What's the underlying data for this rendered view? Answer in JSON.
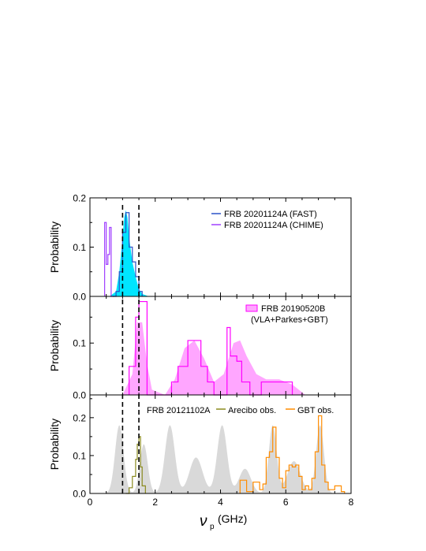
{
  "figure": {
    "xlabel_sym": "ν",
    "xlabel_sub": "p",
    "xlabel_unit": "(GHz)",
    "x_range": [
      0,
      8
    ],
    "x_ticks": [
      0,
      2,
      4,
      6,
      8
    ],
    "dashed_lines_x": [
      1.0,
      1.5
    ]
  },
  "chart_data": [
    {
      "type": "area",
      "ylabel": "Probability",
      "ylim": [
        0,
        0.2
      ],
      "y_ticks": [
        0,
        0.1,
        0.2
      ],
      "y_tick_labels": [
        "0.0",
        "0.1",
        "0.2"
      ],
      "legend_position": "top-right",
      "series": [
        {
          "name": "FRB 20201124A (FAST)",
          "color": "#2b53c8",
          "fill": "#00e5ff",
          "step_edges": [
            0.7,
            0.8,
            0.9,
            1.0,
            1.1,
            1.2,
            1.3,
            1.4,
            1.5,
            1.6
          ],
          "step_values": [
            0.0,
            0.01,
            0.05,
            0.13,
            0.17,
            0.1,
            0.07,
            0.04,
            0.01
          ],
          "density_x": [
            0.6,
            0.8,
            0.9,
            1.0,
            1.05,
            1.1,
            1.15,
            1.2,
            1.3,
            1.4,
            1.5,
            1.6,
            1.8
          ],
          "density_y": [
            0.0,
            0.01,
            0.05,
            0.12,
            0.16,
            0.175,
            0.16,
            0.12,
            0.07,
            0.04,
            0.015,
            0.005,
            0.0
          ]
        },
        {
          "name": "FRB 20201124A (CHIME)",
          "color": "#a040ff",
          "step_edges": [
            0.45,
            0.5,
            0.55,
            0.6,
            0.65,
            0.7,
            0.75
          ],
          "step_values": [
            0.15,
            0.065,
            0.085,
            0.14,
            0.0,
            0.0
          ]
        }
      ]
    },
    {
      "type": "area",
      "ylabel": "Probability",
      "ylim": [
        0,
        0.19
      ],
      "y_ticks": [
        0,
        0.1
      ],
      "y_tick_labels": [
        "0.0",
        "0.1"
      ],
      "legend_position": "top-right",
      "series": [
        {
          "name": "FRB 20190520B",
          "label_extra": "(VLA+Parkes+GBT)",
          "color": "#ff00ff",
          "fill": "#ffa6ff",
          "step_edges": [
            1.2,
            1.4,
            1.5,
            1.75,
            2.0,
            2.5,
            2.7,
            3.0,
            3.4,
            3.6,
            3.8,
            4.2,
            4.3,
            4.5,
            4.65,
            4.9,
            5.25,
            6.2
          ],
          "step_values": [
            0.055,
            0.15,
            0.18,
            0.0,
            0.0,
            0.025,
            0.055,
            0.105,
            0.055,
            0.025,
            0.0,
            0.13,
            0.075,
            0.065,
            0.025,
            0.0,
            0.025
          ],
          "density_x": [
            1.0,
            1.3,
            1.45,
            1.6,
            1.75,
            1.9,
            2.3,
            2.6,
            2.9,
            3.2,
            3.5,
            3.8,
            4.1,
            4.4,
            4.6,
            4.8,
            5.1,
            5.4,
            5.8,
            6.2,
            6.6
          ],
          "density_y": [
            0.0,
            0.04,
            0.14,
            0.14,
            0.06,
            0.01,
            0.0,
            0.03,
            0.09,
            0.105,
            0.07,
            0.025,
            0.04,
            0.1,
            0.105,
            0.075,
            0.04,
            0.03,
            0.03,
            0.02,
            0.0
          ]
        }
      ]
    },
    {
      "type": "area",
      "ylabel": "Probability",
      "ylim": [
        0,
        0.26
      ],
      "y_ticks": [
        0,
        0.1,
        0.2
      ],
      "y_tick_labels": [
        "0.0",
        "0.1",
        "0.2"
      ],
      "legend_position": "top",
      "series": [
        {
          "name": "FRB 20121102A",
          "fill": "#d9d9d9",
          "peaks": [
            {
              "center": 0.9,
              "height": 0.18,
              "width": 0.13
            },
            {
              "center": 1.65,
              "height": 0.13,
              "width": 0.12
            },
            {
              "center": 2.45,
              "height": 0.18,
              "width": 0.15
            },
            {
              "center": 3.25,
              "height": 0.095,
              "width": 0.2
            },
            {
              "center": 4.05,
              "height": 0.18,
              "width": 0.15
            },
            {
              "center": 4.75,
              "height": 0.065,
              "width": 0.18
            },
            {
              "center": 5.6,
              "height": 0.18,
              "width": 0.12
            },
            {
              "center": 6.25,
              "height": 0.085,
              "width": 0.2
            },
            {
              "center": 7.05,
              "height": 0.18,
              "width": 0.12
            }
          ]
        },
        {
          "name": "Arecibo obs.",
          "color": "#8a8a1e",
          "step_edges": [
            1.1,
            1.2,
            1.3,
            1.4,
            1.45,
            1.5,
            1.55,
            1.6,
            1.7
          ],
          "step_values": [
            0.0,
            0.015,
            0.045,
            0.09,
            0.13,
            0.15,
            0.07,
            0.02
          ]
        },
        {
          "name": "GBT obs.",
          "color": "#ff8c00",
          "step_edges": [
            4.6,
            4.8,
            5.0,
            5.2,
            5.3,
            5.4,
            5.5,
            5.6,
            5.7,
            5.8,
            5.9,
            6.0,
            6.1,
            6.2,
            6.3,
            6.4,
            6.5,
            6.6,
            6.7,
            6.8,
            6.9,
            7.0,
            7.1,
            7.2,
            7.3,
            7.5,
            7.7,
            7.8
          ],
          "step_values": [
            0.035,
            0.005,
            0.03,
            0.01,
            0.025,
            0.095,
            0.11,
            0.175,
            0.095,
            0.04,
            0.015,
            0.06,
            0.075,
            0.07,
            0.075,
            0.045,
            0.01,
            0.02,
            0.01,
            0.04,
            0.11,
            0.205,
            0.075,
            0.03,
            0.01,
            0.02,
            0.005
          ]
        }
      ]
    }
  ]
}
